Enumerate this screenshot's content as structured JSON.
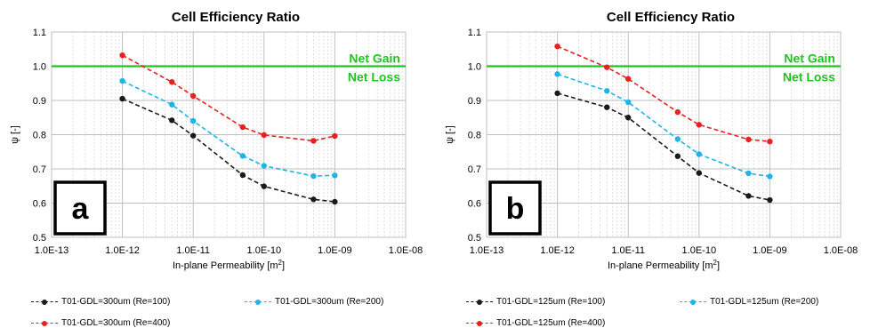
{
  "colors": {
    "series": [
      "#1a1a1a",
      "#1fb4e8",
      "#e82020"
    ],
    "threshold": "#22c422",
    "grid_major": "#bfbfbf",
    "grid_minor": "#d9d9d9"
  },
  "chart_data": [
    {
      "type": "line",
      "panel_label": "a",
      "title": "Cell Efficiency Ratio",
      "xlabel": "In-plane Permeability [m",
      "xlabel_sup": "2",
      "xlabel_end": "]",
      "ylabel": "ψ [-]",
      "x_scale": "log",
      "xlim": [
        1e-13,
        1e-08
      ],
      "ylim": [
        0.5,
        1.1
      ],
      "xticks": [
        "1.0E-13",
        "1.0E-12",
        "1.0E-11",
        "1.0E-10",
        "1.0E-09",
        "1.0E-08"
      ],
      "yticks": [
        "0.5",
        "0.6",
        "0.7",
        "0.8",
        "0.9",
        "1.0",
        "1.1"
      ],
      "grid": true,
      "threshold": {
        "y": 1.0,
        "label_above": "Net Gain",
        "label_below": "Net Loss"
      },
      "x": [
        1e-12,
        5e-12,
        1e-11,
        5e-11,
        1e-10,
        5e-10,
        1e-09
      ],
      "series": [
        {
          "name": "T01-GDL=300um (Re=100)",
          "values": [
            0.905,
            0.842,
            0.797,
            0.682,
            0.649,
            0.611,
            0.604
          ]
        },
        {
          "name": "T01-GDL=300um (Re=200)",
          "values": [
            0.957,
            0.888,
            0.84,
            0.738,
            0.709,
            0.679,
            0.681
          ]
        },
        {
          "name": "T01-GDL=300um (Re=400)",
          "values": [
            1.032,
            0.954,
            0.913,
            0.822,
            0.799,
            0.782,
            0.796
          ]
        }
      ]
    },
    {
      "type": "line",
      "panel_label": "b",
      "title": "Cell Efficiency Ratio",
      "xlabel": "In-plane Permeability [m",
      "xlabel_sup": "2",
      "xlabel_end": "]",
      "ylabel": "ψ [-]",
      "x_scale": "log",
      "xlim": [
        1e-13,
        1e-08
      ],
      "ylim": [
        0.5,
        1.1
      ],
      "xticks": [
        "1.0E-13",
        "1.0E-12",
        "1.0E-11",
        "1.0E-10",
        "1.0E-09",
        "1.0E-08"
      ],
      "yticks": [
        "0.5",
        "0.6",
        "0.7",
        "0.8",
        "0.9",
        "1.0",
        "1.1"
      ],
      "grid": true,
      "threshold": {
        "y": 1.0,
        "label_above": "Net Gain",
        "label_below": "Net Loss"
      },
      "x": [
        1e-12,
        5e-12,
        1e-11,
        5e-11,
        1e-10,
        5e-10,
        1e-09
      ],
      "series": [
        {
          "name": "T01-GDL=125um (Re=100)",
          "values": [
            0.921,
            0.88,
            0.85,
            0.737,
            0.688,
            0.621,
            0.609
          ]
        },
        {
          "name": "T01-GDL=125um (Re=200)",
          "values": [
            0.977,
            0.928,
            0.895,
            0.787,
            0.743,
            0.687,
            0.678
          ]
        },
        {
          "name": "T01-GDL=125um (Re=400)",
          "values": [
            1.058,
            0.997,
            0.963,
            0.866,
            0.829,
            0.786,
            0.78
          ]
        }
      ]
    }
  ]
}
